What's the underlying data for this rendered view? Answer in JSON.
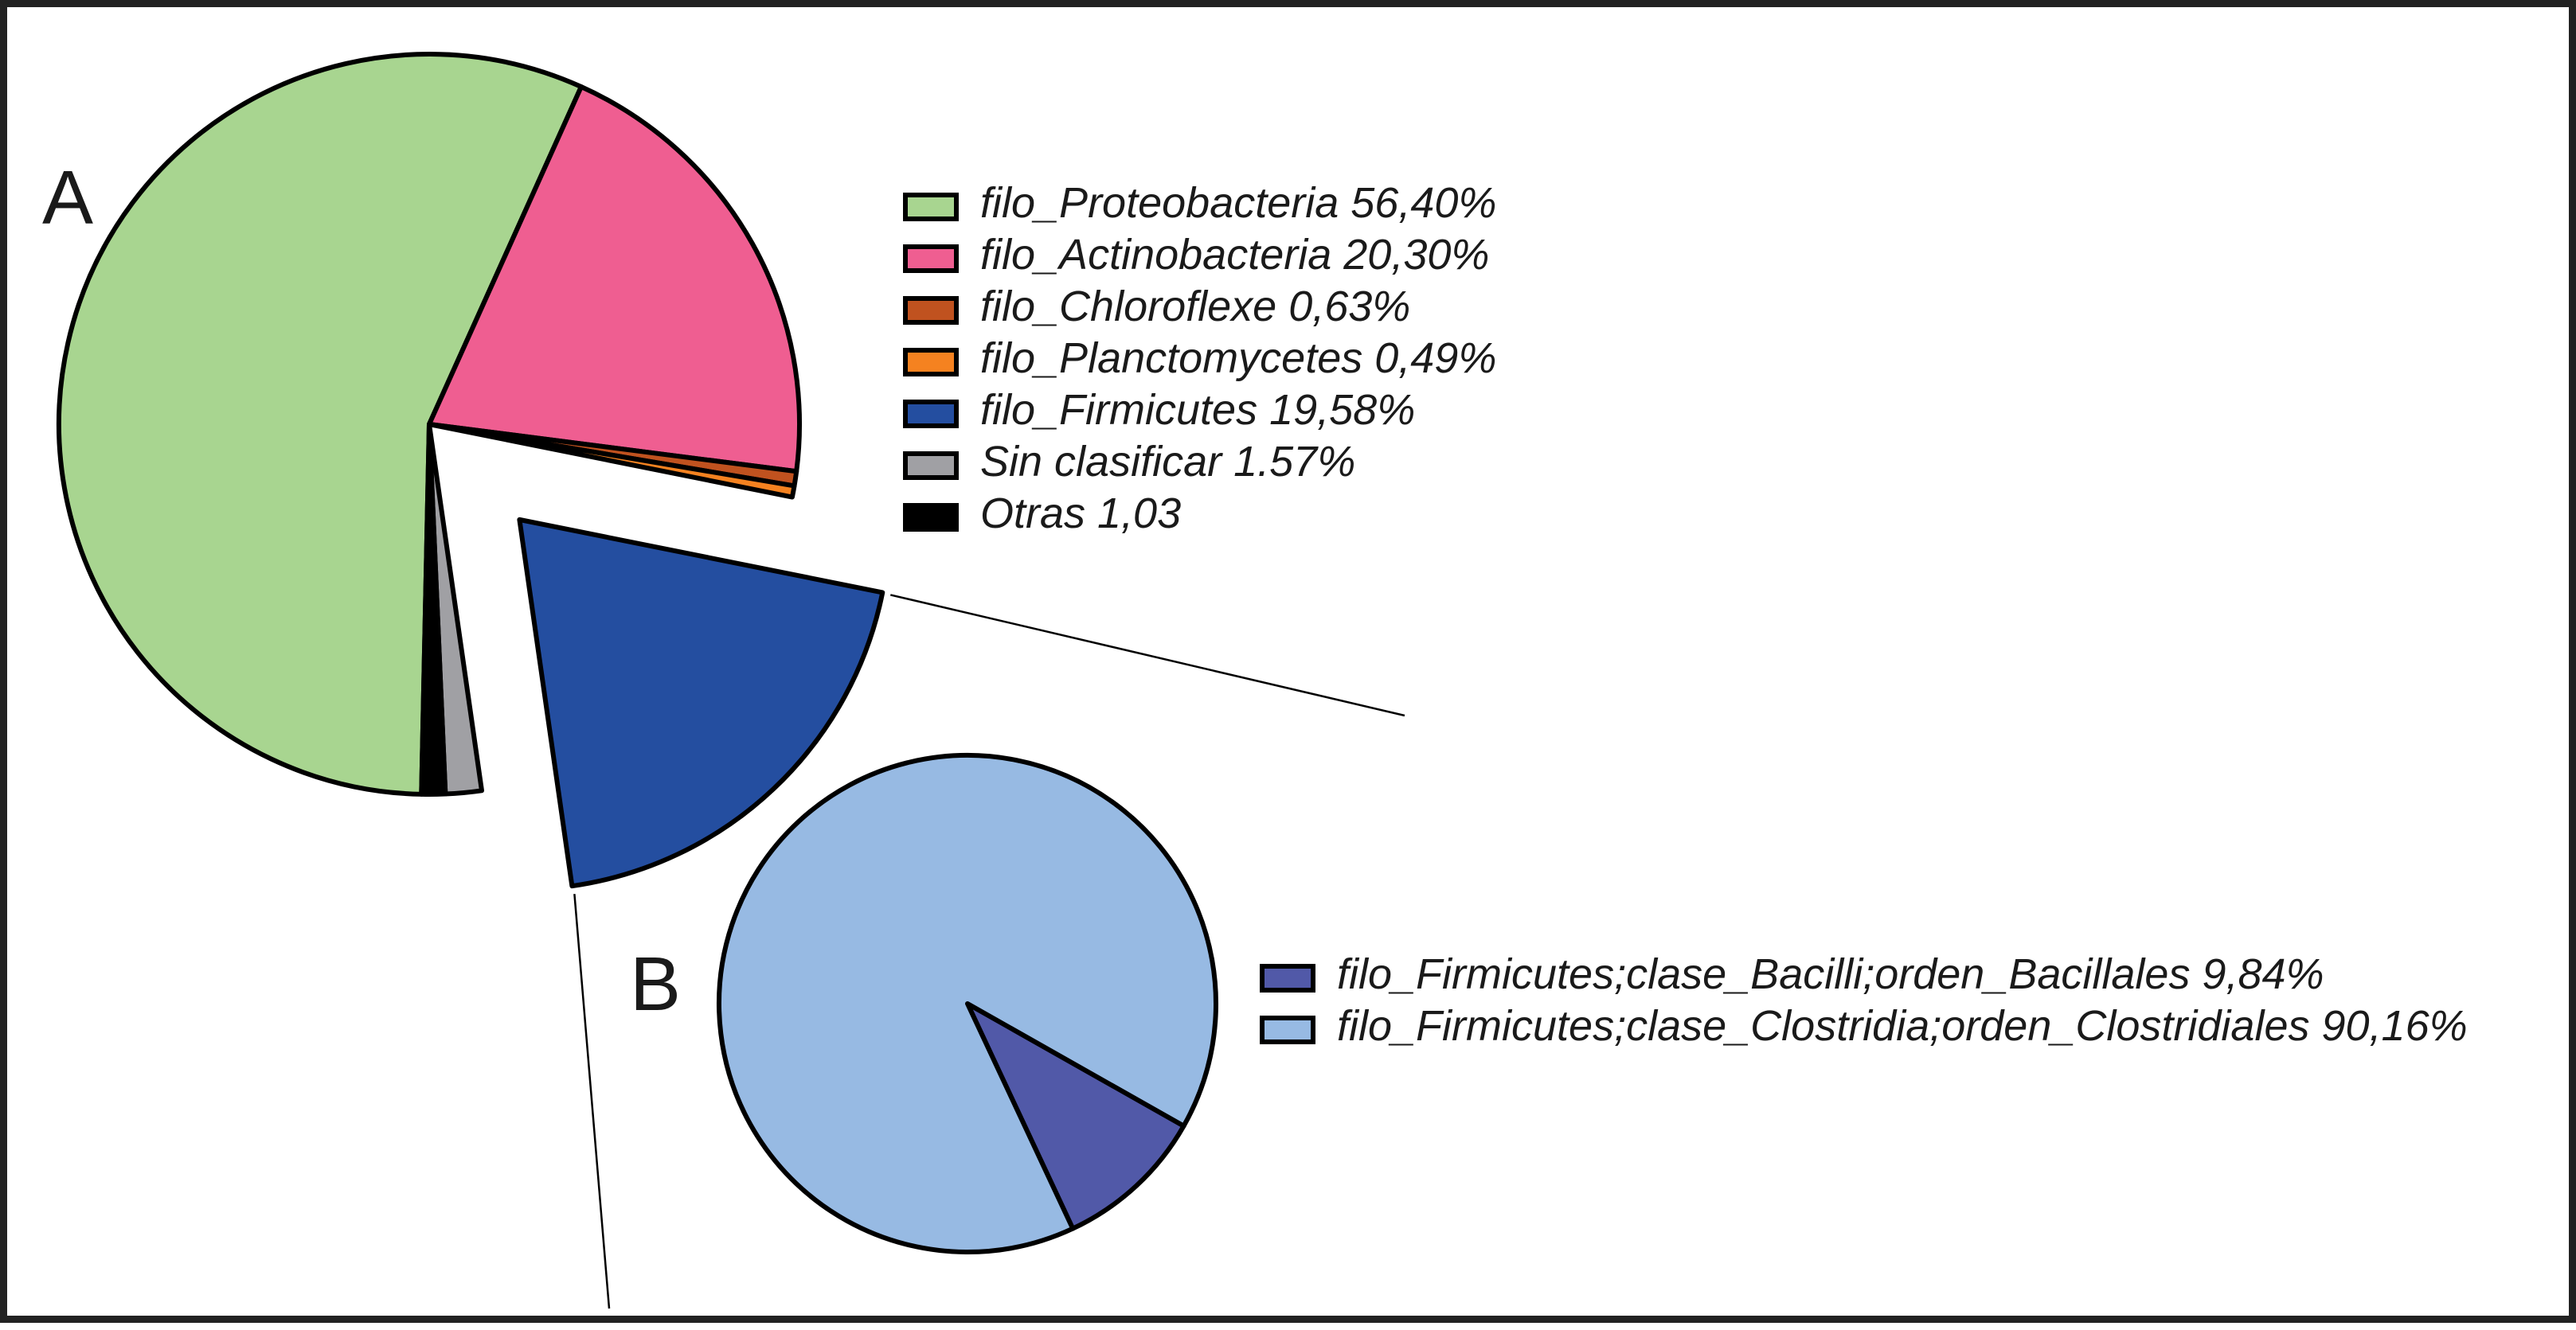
{
  "chart_data": [
    {
      "type": "pie",
      "panel_label": "A",
      "legend_position": "right",
      "slices": [
        {
          "label": "filo_Proteobacteria 56,40%",
          "value": 56.4,
          "color": "#a8d590"
        },
        {
          "label": "filo_Actinobacteria 20,30%",
          "value": 20.3,
          "color": "#ef5e91"
        },
        {
          "label": "filo_Chloroflexe 0,63%",
          "value": 0.63,
          "color": "#c0521f"
        },
        {
          "label": "filo_Planctomycetes 0,49%",
          "value": 0.49,
          "color": "#f58220"
        },
        {
          "label": "filo_Firmicutes 19,58%",
          "value": 19.58,
          "color": "#244ea0",
          "exploded": true
        },
        {
          "label": "Sin clasificar 1.57%",
          "value": 1.57,
          "color": "#a0a0a4"
        },
        {
          "label": "Otras 1,03",
          "value": 1.03,
          "color": "#000000"
        }
      ]
    },
    {
      "type": "pie",
      "panel_label": "B",
      "legend_position": "right",
      "slices": [
        {
          "label": "filo_Firmicutes;clase_Bacilli;orden_Bacillales 9,84%",
          "value": 9.84,
          "color": "#5159a8"
        },
        {
          "label": "filo_Firmicutes;clase_Clostridia;orden_Clostridiales 90,16%",
          "value": 90.16,
          "color": "#97bae3"
        }
      ]
    }
  ]
}
